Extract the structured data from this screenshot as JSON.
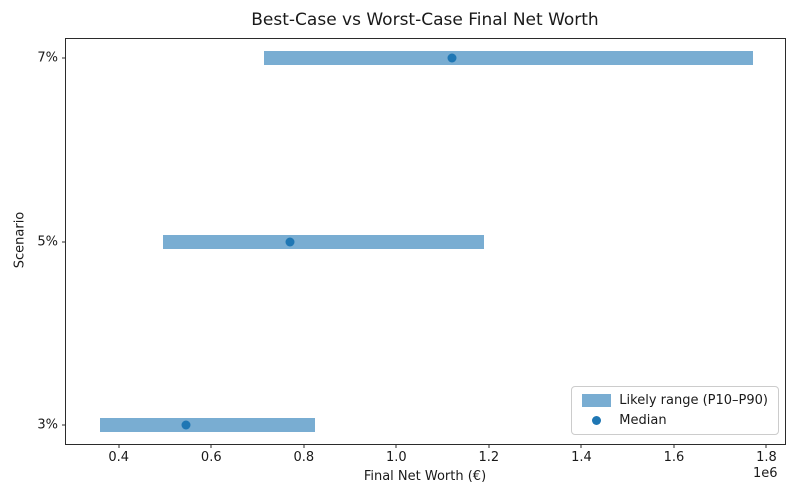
{
  "figure": {
    "title": "Best-Case vs Worst-Case Final Net Worth"
  },
  "chart_data": {
    "type": "bar",
    "subtype": "horizontal-range-with-median-dot",
    "title": "Best-Case vs Worst-Case Final Net Worth",
    "xlabel": "Final Net Worth (€)",
    "ylabel": "Scenario",
    "x_axis_offset_label": "1e6",
    "grid": false,
    "xlim": [
      286000,
      1840000
    ],
    "ylim": [
      -0.105,
      2.105
    ],
    "x_ticks": [
      400000,
      600000,
      800000,
      1000000,
      1200000,
      1400000,
      1600000,
      1800000
    ],
    "x_tick_labels": [
      "0.4",
      "0.6",
      "0.8",
      "1.0",
      "1.2",
      "1.4",
      "1.6",
      "1.8"
    ],
    "categories": [
      "3%",
      "5%",
      "7%"
    ],
    "rows": [
      {
        "scenario": "3%",
        "p10": 360000,
        "median": 545000,
        "p90": 825000
      },
      {
        "scenario": "5%",
        "p10": 495000,
        "median": 770000,
        "p90": 1190000
      },
      {
        "scenario": "7%",
        "p10": 715000,
        "median": 1120000,
        "p90": 1770000
      }
    ],
    "legend": {
      "position": "lower right",
      "entries": [
        {
          "label": "Likely range (P10–P90)",
          "marker": "patch",
          "color": "#79add2"
        },
        {
          "label": "Median",
          "marker": "dot",
          "color": "#1f77b4"
        }
      ]
    },
    "colors": {
      "range_bar": "#79add2",
      "median_dot": "#1f77b4",
      "axis": "#2b2b2b",
      "text": "#1a1a1a"
    }
  }
}
